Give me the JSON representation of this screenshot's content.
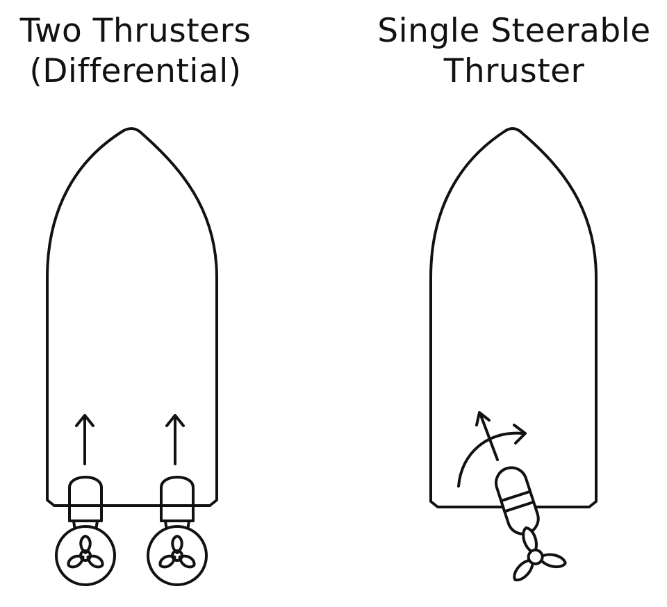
{
  "left_panel": {
    "title_line1": "Two Thrusters",
    "title_line2": "(Differential)"
  },
  "right_panel": {
    "title_line1": "Single Steerable",
    "title_line2": "Thruster"
  },
  "colors": {
    "line": "#111111",
    "background": "#ffffff"
  },
  "icons": [
    "boat-hull-icon",
    "thruster-pod-icon",
    "propeller-icon",
    "thrust-arrow-icon",
    "rotation-arrow-icon"
  ]
}
